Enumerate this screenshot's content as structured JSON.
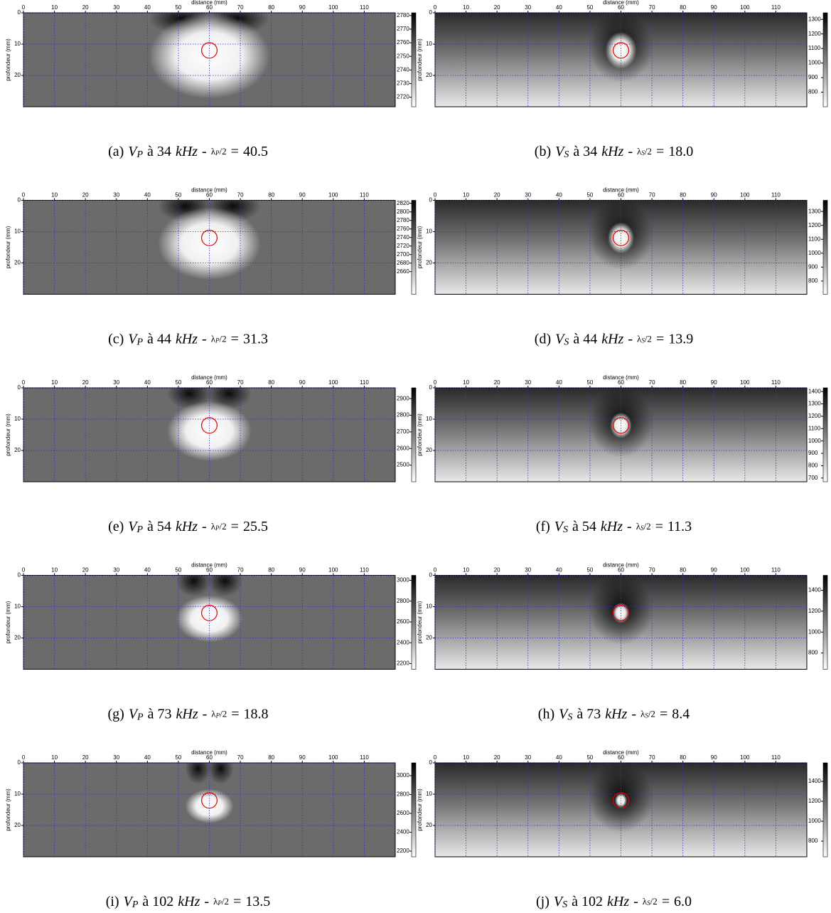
{
  "chart_data": [
    {
      "type": "heatmap",
      "xlabel": "distance (mm)",
      "ylabel": "profondeur (mm)",
      "xlim": [
        0,
        120
      ],
      "ylim": [
        0,
        30
      ],
      "xticks": [
        0,
        10,
        20,
        30,
        40,
        50,
        60,
        70,
        80,
        90,
        100,
        110
      ],
      "yticks": [
        0,
        10,
        20
      ],
      "grid": true,
      "grid_color": "#3333cc",
      "colormap": "gray_r",
      "clim": [
        2713,
        2782
      ],
      "cticks": [
        2720,
        2730,
        2740,
        2750,
        2760,
        2770,
        2780
      ],
      "target": {
        "x": 60,
        "y": 12,
        "r": 2.5,
        "color": "#e00000"
      },
      "caption": [
        {
          "text": "(a)"
        },
        {
          "text": "V",
          "style": "italic"
        },
        {
          "text": "P",
          "style": "sub"
        },
        {
          "text": "à 34"
        },
        {
          "text": "kHz",
          "style": "italic"
        },
        {
          "text": "-"
        },
        {
          "text": "λ",
          "style": "small"
        },
        {
          "text": "P",
          "style": "smallsub"
        },
        {
          "text": "/2",
          "style": "small"
        },
        {
          "text": "="
        },
        {
          "text": "40.5"
        }
      ]
    },
    {
      "type": "heatmap",
      "xlabel": "distance (mm)",
      "ylabel": "profondeur (mm)",
      "xlim": [
        0,
        120
      ],
      "ylim": [
        0,
        30
      ],
      "xticks": [
        0,
        10,
        20,
        30,
        40,
        50,
        60,
        70,
        80,
        90,
        100,
        110
      ],
      "yticks": [
        0,
        10,
        20
      ],
      "grid": true,
      "grid_color": "#3333cc",
      "colormap": "gray_r",
      "clim": [
        700,
        1345
      ],
      "cticks": [
        800,
        900,
        1000,
        1100,
        1200,
        1300
      ],
      "target": {
        "x": 60,
        "y": 12,
        "r": 2.5,
        "color": "#e00000"
      },
      "caption": [
        {
          "text": "(b)"
        },
        {
          "text": "V",
          "style": "italic"
        },
        {
          "text": "S",
          "style": "sub"
        },
        {
          "text": "à 34"
        },
        {
          "text": "kHz",
          "style": "italic"
        },
        {
          "text": "-"
        },
        {
          "text": "λ",
          "style": "small"
        },
        {
          "text": "S",
          "style": "smallsub"
        },
        {
          "text": "/2",
          "style": "small"
        },
        {
          "text": "="
        },
        {
          "text": "18.0"
        }
      ]
    },
    {
      "type": "heatmap",
      "xlabel": "distance (mm)",
      "ylabel": "profondeur (mm)",
      "xlim": [
        0,
        120
      ],
      "ylim": [
        0,
        30
      ],
      "xticks": [
        0,
        10,
        20,
        30,
        40,
        50,
        60,
        70,
        80,
        90,
        100,
        110
      ],
      "yticks": [
        0,
        10,
        20
      ],
      "grid": true,
      "grid_color": "#3333cc",
      "colormap": "gray_r",
      "clim": [
        2607,
        2827
      ],
      "cticks": [
        2660,
        2680,
        2700,
        2720,
        2740,
        2760,
        2780,
        2800,
        2820
      ],
      "target": {
        "x": 60,
        "y": 12,
        "r": 2.5,
        "color": "#e00000"
      },
      "caption": [
        {
          "text": "(c)"
        },
        {
          "text": "V",
          "style": "italic"
        },
        {
          "text": "P",
          "style": "sub"
        },
        {
          "text": "à 44"
        },
        {
          "text": "kHz",
          "style": "italic"
        },
        {
          "text": "-"
        },
        {
          "text": "λ",
          "style": "small"
        },
        {
          "text": "P",
          "style": "smallsub"
        },
        {
          "text": "/2",
          "style": "small"
        },
        {
          "text": "="
        },
        {
          "text": "31.3"
        }
      ]
    },
    {
      "type": "heatmap",
      "xlabel": "distance (mm)",
      "ylabel": "profondeur (mm)",
      "xlim": [
        0,
        120
      ],
      "ylim": [
        0,
        30
      ],
      "xticks": [
        0,
        10,
        20,
        30,
        40,
        50,
        60,
        70,
        80,
        90,
        100,
        110
      ],
      "yticks": [
        0,
        10,
        20
      ],
      "grid": true,
      "grid_color": "#3333cc",
      "colormap": "gray_r",
      "clim": [
        705,
        1380
      ],
      "cticks": [
        800,
        900,
        1000,
        1100,
        1200,
        1300
      ],
      "target": {
        "x": 60,
        "y": 12,
        "r": 2.5,
        "color": "#e00000"
      },
      "caption": [
        {
          "text": "(d)"
        },
        {
          "text": "V",
          "style": "italic"
        },
        {
          "text": "S",
          "style": "sub"
        },
        {
          "text": "à 44"
        },
        {
          "text": "kHz",
          "style": "italic"
        },
        {
          "text": "-"
        },
        {
          "text": "λ",
          "style": "small"
        },
        {
          "text": "S",
          "style": "smallsub"
        },
        {
          "text": "/2",
          "style": "small"
        },
        {
          "text": "="
        },
        {
          "text": "13.9"
        }
      ]
    },
    {
      "type": "heatmap",
      "xlabel": "distance (mm)",
      "ylabel": "profondeur (mm)",
      "xlim": [
        0,
        120
      ],
      "ylim": [
        0,
        30
      ],
      "xticks": [
        0,
        10,
        20,
        30,
        40,
        50,
        60,
        70,
        80,
        90,
        100,
        110
      ],
      "yticks": [
        0,
        10,
        20
      ],
      "grid": true,
      "grid_color": "#3333cc",
      "colormap": "gray_r",
      "clim": [
        2400,
        2965
      ],
      "cticks": [
        2500,
        2600,
        2700,
        2800,
        2900
      ],
      "target": {
        "x": 60,
        "y": 12,
        "r": 2.5,
        "color": "#e00000"
      },
      "caption": [
        {
          "text": "(e)"
        },
        {
          "text": "V",
          "style": "italic"
        },
        {
          "text": "P",
          "style": "sub"
        },
        {
          "text": "à 54"
        },
        {
          "text": "kHz",
          "style": "italic"
        },
        {
          "text": "-"
        },
        {
          "text": "λ",
          "style": "small"
        },
        {
          "text": "P",
          "style": "smallsub"
        },
        {
          "text": "/2",
          "style": "small"
        },
        {
          "text": "="
        },
        {
          "text": "25.5"
        }
      ]
    },
    {
      "type": "heatmap",
      "xlabel": "distance (mm)",
      "ylabel": "profondeur (mm)",
      "xlim": [
        0,
        120
      ],
      "ylim": [
        0,
        30
      ],
      "xticks": [
        0,
        10,
        20,
        30,
        40,
        50,
        60,
        70,
        80,
        90,
        100,
        110
      ],
      "yticks": [
        0,
        10,
        20
      ],
      "grid": true,
      "grid_color": "#3333cc",
      "colormap": "gray_r",
      "clim": [
        670,
        1430
      ],
      "cticks": [
        700,
        800,
        900,
        1000,
        1100,
        1200,
        1300,
        1400
      ],
      "target": {
        "x": 60,
        "y": 12,
        "r": 2.5,
        "color": "#e00000"
      },
      "caption": [
        {
          "text": "(f)"
        },
        {
          "text": "V",
          "style": "italic"
        },
        {
          "text": "S",
          "style": "sub"
        },
        {
          "text": "à 54"
        },
        {
          "text": "kHz",
          "style": "italic"
        },
        {
          "text": "-"
        },
        {
          "text": "λ",
          "style": "small"
        },
        {
          "text": "S",
          "style": "smallsub"
        },
        {
          "text": "/2",
          "style": "small"
        },
        {
          "text": "="
        },
        {
          "text": "11.3"
        }
      ]
    },
    {
      "type": "heatmap",
      "xlabel": "distance (mm)",
      "ylabel": "profondeur (mm)",
      "xlim": [
        0,
        120
      ],
      "ylim": [
        0,
        30
      ],
      "xticks": [
        0,
        10,
        20,
        30,
        40,
        50,
        60,
        70,
        80,
        90,
        100,
        110
      ],
      "yticks": [
        0,
        10,
        20
      ],
      "grid": true,
      "grid_color": "#3333cc",
      "colormap": "gray_r",
      "clim": [
        2145,
        3048
      ],
      "cticks": [
        2200,
        2400,
        2600,
        2800,
        3000
      ],
      "target": {
        "x": 60,
        "y": 12,
        "r": 2.5,
        "color": "#e00000"
      },
      "caption": [
        {
          "text": "(g)"
        },
        {
          "text": "V",
          "style": "italic"
        },
        {
          "text": "P",
          "style": "sub"
        },
        {
          "text": "à 73"
        },
        {
          "text": "kHz",
          "style": "italic"
        },
        {
          "text": "-"
        },
        {
          "text": "λ",
          "style": "small"
        },
        {
          "text": "P",
          "style": "smallsub"
        },
        {
          "text": "/2",
          "style": "small"
        },
        {
          "text": "="
        },
        {
          "text": "18.8"
        }
      ]
    },
    {
      "type": "heatmap",
      "xlabel": "distance (mm)",
      "ylabel": "profondeur (mm)",
      "xlim": [
        0,
        120
      ],
      "ylim": [
        0,
        30
      ],
      "xticks": [
        0,
        10,
        20,
        30,
        40,
        50,
        60,
        70,
        80,
        90,
        100,
        110
      ],
      "yticks": [
        0,
        10,
        20
      ],
      "grid": true,
      "grid_color": "#3333cc",
      "colormap": "gray_r",
      "clim": [
        644,
        1543
      ],
      "cticks": [
        800,
        1000,
        1200,
        1400
      ],
      "target": {
        "x": 60,
        "y": 12,
        "r": 2.5,
        "color": "#e00000"
      },
      "caption": [
        {
          "text": "(h)"
        },
        {
          "text": "V",
          "style": "italic"
        },
        {
          "text": "S",
          "style": "sub"
        },
        {
          "text": "à 73"
        },
        {
          "text": "kHz",
          "style": "italic"
        },
        {
          "text": "-"
        },
        {
          "text": "λ",
          "style": "small"
        },
        {
          "text": "S",
          "style": "smallsub"
        },
        {
          "text": "/2",
          "style": "small"
        },
        {
          "text": "="
        },
        {
          "text": "8.4"
        }
      ]
    },
    {
      "type": "heatmap",
      "xlabel": "distance (mm)",
      "ylabel": "profondeur (mm)",
      "xlim": [
        0,
        120
      ],
      "ylim": [
        0,
        30
      ],
      "xticks": [
        0,
        10,
        20,
        30,
        40,
        50,
        60,
        70,
        80,
        90,
        100,
        110
      ],
      "yticks": [
        0,
        10,
        20
      ],
      "grid": true,
      "grid_color": "#3333cc",
      "colormap": "gray_r",
      "clim": [
        2140,
        3136
      ],
      "cticks": [
        2200,
        2400,
        2600,
        2800,
        3000
      ],
      "target": {
        "x": 60,
        "y": 12,
        "r": 2.5,
        "color": "#e00000"
      },
      "caption": [
        {
          "text": "(i)"
        },
        {
          "text": "V",
          "style": "italic"
        },
        {
          "text": "P",
          "style": "sub"
        },
        {
          "text": "à 102"
        },
        {
          "text": "kHz",
          "style": "italic"
        },
        {
          "text": "-"
        },
        {
          "text": "λ",
          "style": "small"
        },
        {
          "text": "P",
          "style": "smallsub"
        },
        {
          "text": "/2",
          "style": "small"
        },
        {
          "text": "="
        },
        {
          "text": "13.5"
        }
      ]
    },
    {
      "type": "heatmap",
      "xlabel": "distance (mm)",
      "ylabel": "profondeur (mm)",
      "xlim": [
        0,
        120
      ],
      "ylim": [
        0,
        30
      ],
      "xticks": [
        0,
        10,
        20,
        30,
        40,
        50,
        60,
        70,
        80,
        90,
        100,
        110
      ],
      "yticks": [
        0,
        10,
        20
      ],
      "grid": true,
      "grid_color": "#3333cc",
      "colormap": "gray_r",
      "clim": [
        643,
        1586
      ],
      "cticks": [
        800,
        1000,
        1200,
        1400
      ],
      "target": {
        "x": 60,
        "y": 12,
        "r": 2.5,
        "color": "#e00000"
      },
      "caption": [
        {
          "text": "(j)"
        },
        {
          "text": "V",
          "style": "italic"
        },
        {
          "text": "S",
          "style": "sub"
        },
        {
          "text": "à 102"
        },
        {
          "text": "kHz",
          "style": "italic"
        },
        {
          "text": "-"
        },
        {
          "text": "λ",
          "style": "small"
        },
        {
          "text": "S",
          "style": "smallsub"
        },
        {
          "text": "/2",
          "style": "small"
        },
        {
          "text": "="
        },
        {
          "text": "6.0"
        }
      ]
    }
  ]
}
